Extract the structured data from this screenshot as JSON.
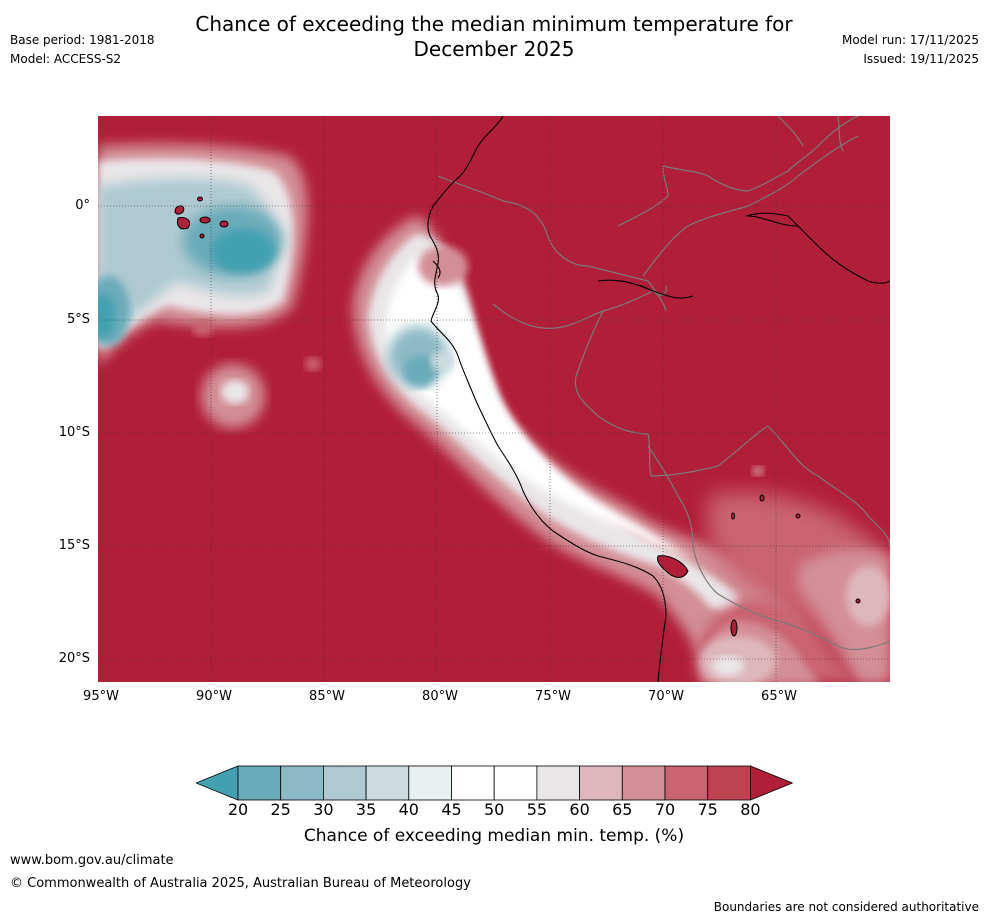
{
  "header": {
    "title_line1": "Chance of exceeding the median minimum temperature for",
    "title_line2": "December 2025",
    "base_period": "Base period: 1981-2018",
    "model": "Model: ACCESS-S2",
    "model_run": "Model run: 17/11/2025",
    "issued": "Issued: 19/11/2025"
  },
  "map": {
    "lat_labels": [
      "0°",
      "5°S",
      "10°S",
      "15°S",
      "20°S"
    ],
    "lon_labels": [
      "95°W",
      "90°W",
      "85°W",
      "80°W",
      "75°W",
      "70°W",
      "65°W"
    ]
  },
  "colorbar": {
    "ticks": [
      "20",
      "25",
      "30",
      "35",
      "40",
      "45",
      "50",
      "55",
      "60",
      "65",
      "70",
      "75",
      "80"
    ],
    "colors": [
      "#42a0b0",
      "#6aabba",
      "#8db9c5",
      "#aec9d1",
      "#ccdcdf",
      "#eaf0f2",
      "#ffffff",
      "#ffffff",
      "#e9e6e8",
      "#deb7bd",
      "#d38e96",
      "#c9636f",
      "#bd4353",
      "#b11e38"
    ],
    "label": "Chance of exceeding median min. temp. (%)"
  },
  "footer": {
    "url": "www.bom.gov.au/climate",
    "copyright": "© Commonwealth of Australia 2025, Australian Bureau of Meteorology",
    "disclaimer": "Boundaries are not considered authoritative"
  }
}
